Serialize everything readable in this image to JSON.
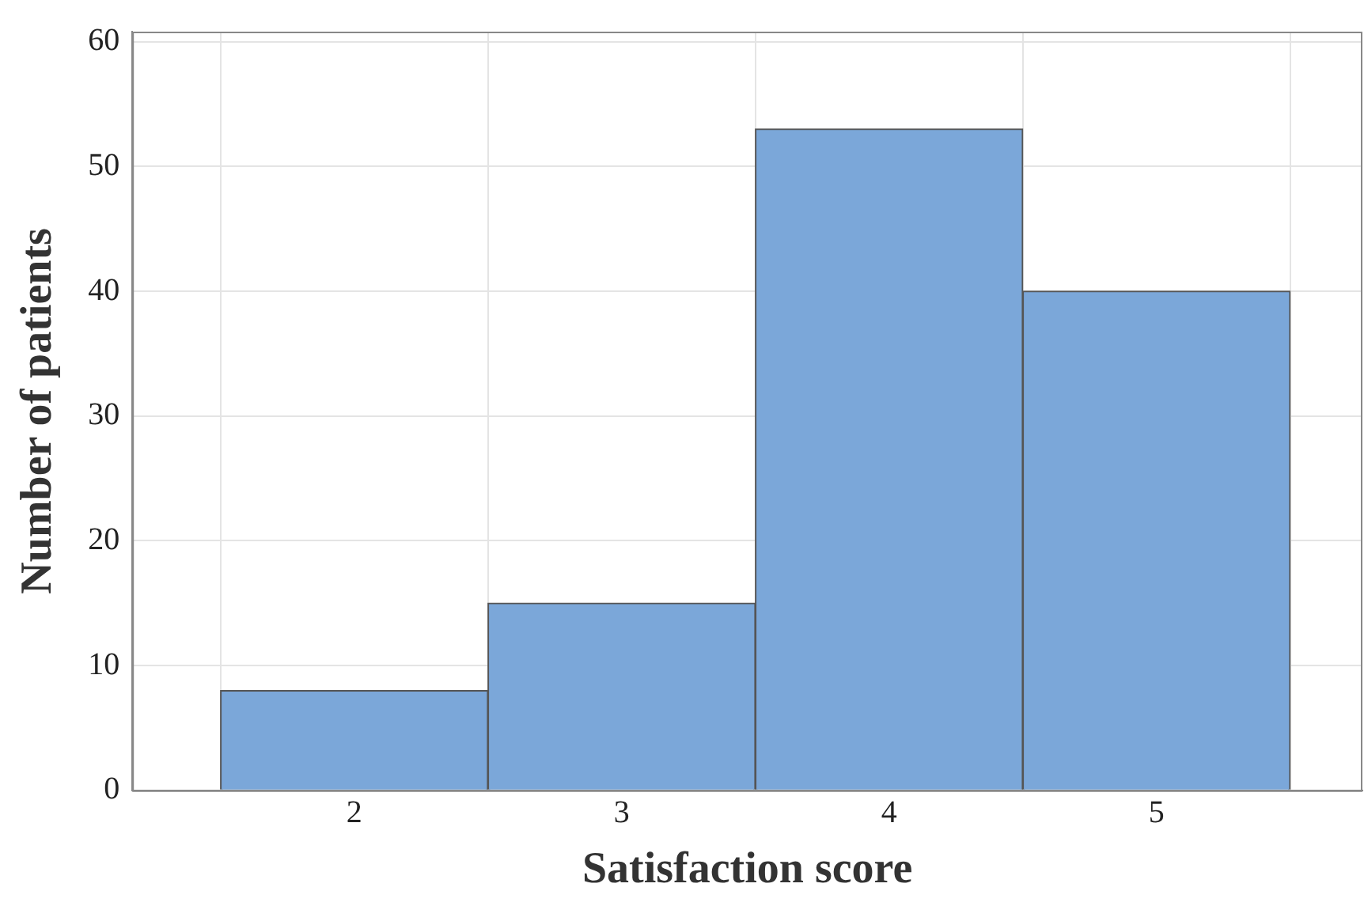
{
  "chart_data": {
    "type": "histogram",
    "xlabel": "Satisfaction score",
    "ylabel": "Number of patients",
    "bins": [
      1.5,
      2.5,
      3.5,
      4.5,
      5.5
    ],
    "values": [
      8,
      15,
      53,
      40
    ],
    "color": "#7ba7d9",
    "xlim": [
      1.17,
      5.77
    ],
    "xticks": [
      2,
      3,
      4,
      5
    ],
    "ylim": [
      0,
      60.8
    ],
    "yticks": [
      0,
      10,
      20,
      30,
      40,
      50,
      60
    ],
    "grid": true
  }
}
